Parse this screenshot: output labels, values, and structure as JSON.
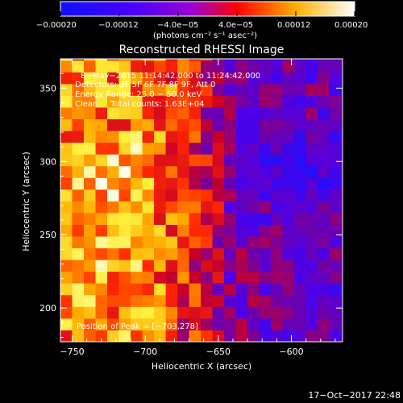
{
  "chart_data": {
    "type": "heatmap",
    "title": "Reconstructed RHESSI Image",
    "xlabel": "Heliocentric X (arcsec)",
    "ylabel": "Heliocentric Y (arcsec)",
    "xlim": [
      -758,
      -565
    ],
    "ylim": [
      177,
      370
    ],
    "xticks": [
      -750,
      -700,
      -650,
      -600
    ],
    "xtick_labels": [
      "−750",
      "−700",
      "−650",
      "−600"
    ],
    "yticks": [
      200,
      250,
      300,
      350
    ],
    "ytick_labels": [
      "200",
      "250",
      "300",
      "350"
    ],
    "colorbar": {
      "label": "(photons cm⁻² s⁻¹ asec⁻²)",
      "range": [
        -0.0002,
        0.0002
      ],
      "ticks_top": [
        "−0.00020",
        "−0.00012",
        "0.00012",
        "0.00020"
      ],
      "ticks_mid": [
        "−4.0e−05",
        "4.0e−05"
      ],
      "colors": [
        "#0000ff",
        "#8a00ff",
        "#ff0000",
        "#ffff00",
        "#ffffff"
      ]
    },
    "annotations": [
      "8−May−2015 11:14:42.000 to 11:24:42.000",
      "Detectors: 3F 5F 6F 7F 8F 9F, Att 0",
      "Energy Range: 25.0 − 50.0 keV",
      "Clean     Total counts: 1.63E+04"
    ],
    "peak_label": "Position of Peak = [−703,278]",
    "peak": [
      -703,
      278
    ],
    "grid": false,
    "brightness_regions": [
      {
        "x": -715,
        "y": 290,
        "level": 0.95
      },
      {
        "x": -725,
        "y": 240,
        "level": 0.9
      },
      {
        "x": -735,
        "y": 205,
        "level": 0.8
      },
      {
        "x": -700,
        "y": 330,
        "level": 0.7
      },
      {
        "x": -600,
        "y": 290,
        "level": 0.05
      }
    ]
  },
  "footer": {
    "timestamp": "17−Oct−2017 22:48"
  }
}
